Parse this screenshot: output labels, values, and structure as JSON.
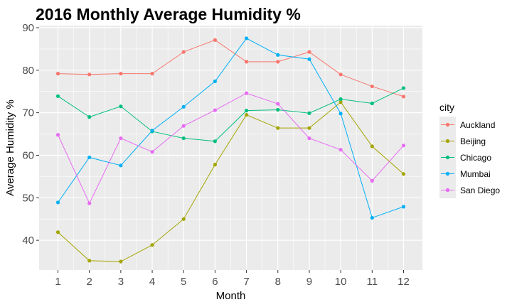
{
  "chart_data": {
    "type": "line",
    "title": "2016 Monthly Average Humidity %",
    "xlabel": "Month",
    "ylabel": "Average Humidity %",
    "x": [
      1,
      2,
      3,
      4,
      5,
      6,
      7,
      8,
      9,
      10,
      11,
      12
    ],
    "xlim": [
      0.4,
      12.6
    ],
    "ylim": [
      33,
      90.5
    ],
    "yticks": [
      40,
      50,
      60,
      70,
      80,
      90
    ],
    "grid": true,
    "legend": {
      "title": "city",
      "position": "right"
    },
    "series": [
      {
        "name": "Auckland",
        "color": "#F8766D",
        "values": [
          79.2,
          79.0,
          79.2,
          79.2,
          84.3,
          87.1,
          82.0,
          82.0,
          84.3,
          79.0,
          76.2,
          73.8
        ]
      },
      {
        "name": "Beijing",
        "color": "#A3A500",
        "values": [
          41.9,
          35.2,
          35.0,
          38.9,
          45.0,
          57.8,
          69.5,
          66.4,
          66.4,
          72.5,
          62.1,
          55.6
        ]
      },
      {
        "name": "Chicago",
        "color": "#00BF7D",
        "values": [
          73.9,
          69.0,
          71.5,
          65.6,
          64.0,
          63.3,
          70.5,
          70.7,
          69.9,
          73.2,
          72.2,
          75.8
        ]
      },
      {
        "name": "Mumbai",
        "color": "#00B0F6",
        "values": [
          48.9,
          59.5,
          57.6,
          65.8,
          71.4,
          77.4,
          87.5,
          83.6,
          82.6,
          69.8,
          45.3,
          47.9
        ]
      },
      {
        "name": "San Diego",
        "color": "#E76BF3",
        "values": [
          64.8,
          48.7,
          64.0,
          60.8,
          66.9,
          70.6,
          74.6,
          72.1,
          64.0,
          61.3,
          54.0,
          62.3
        ]
      }
    ]
  }
}
